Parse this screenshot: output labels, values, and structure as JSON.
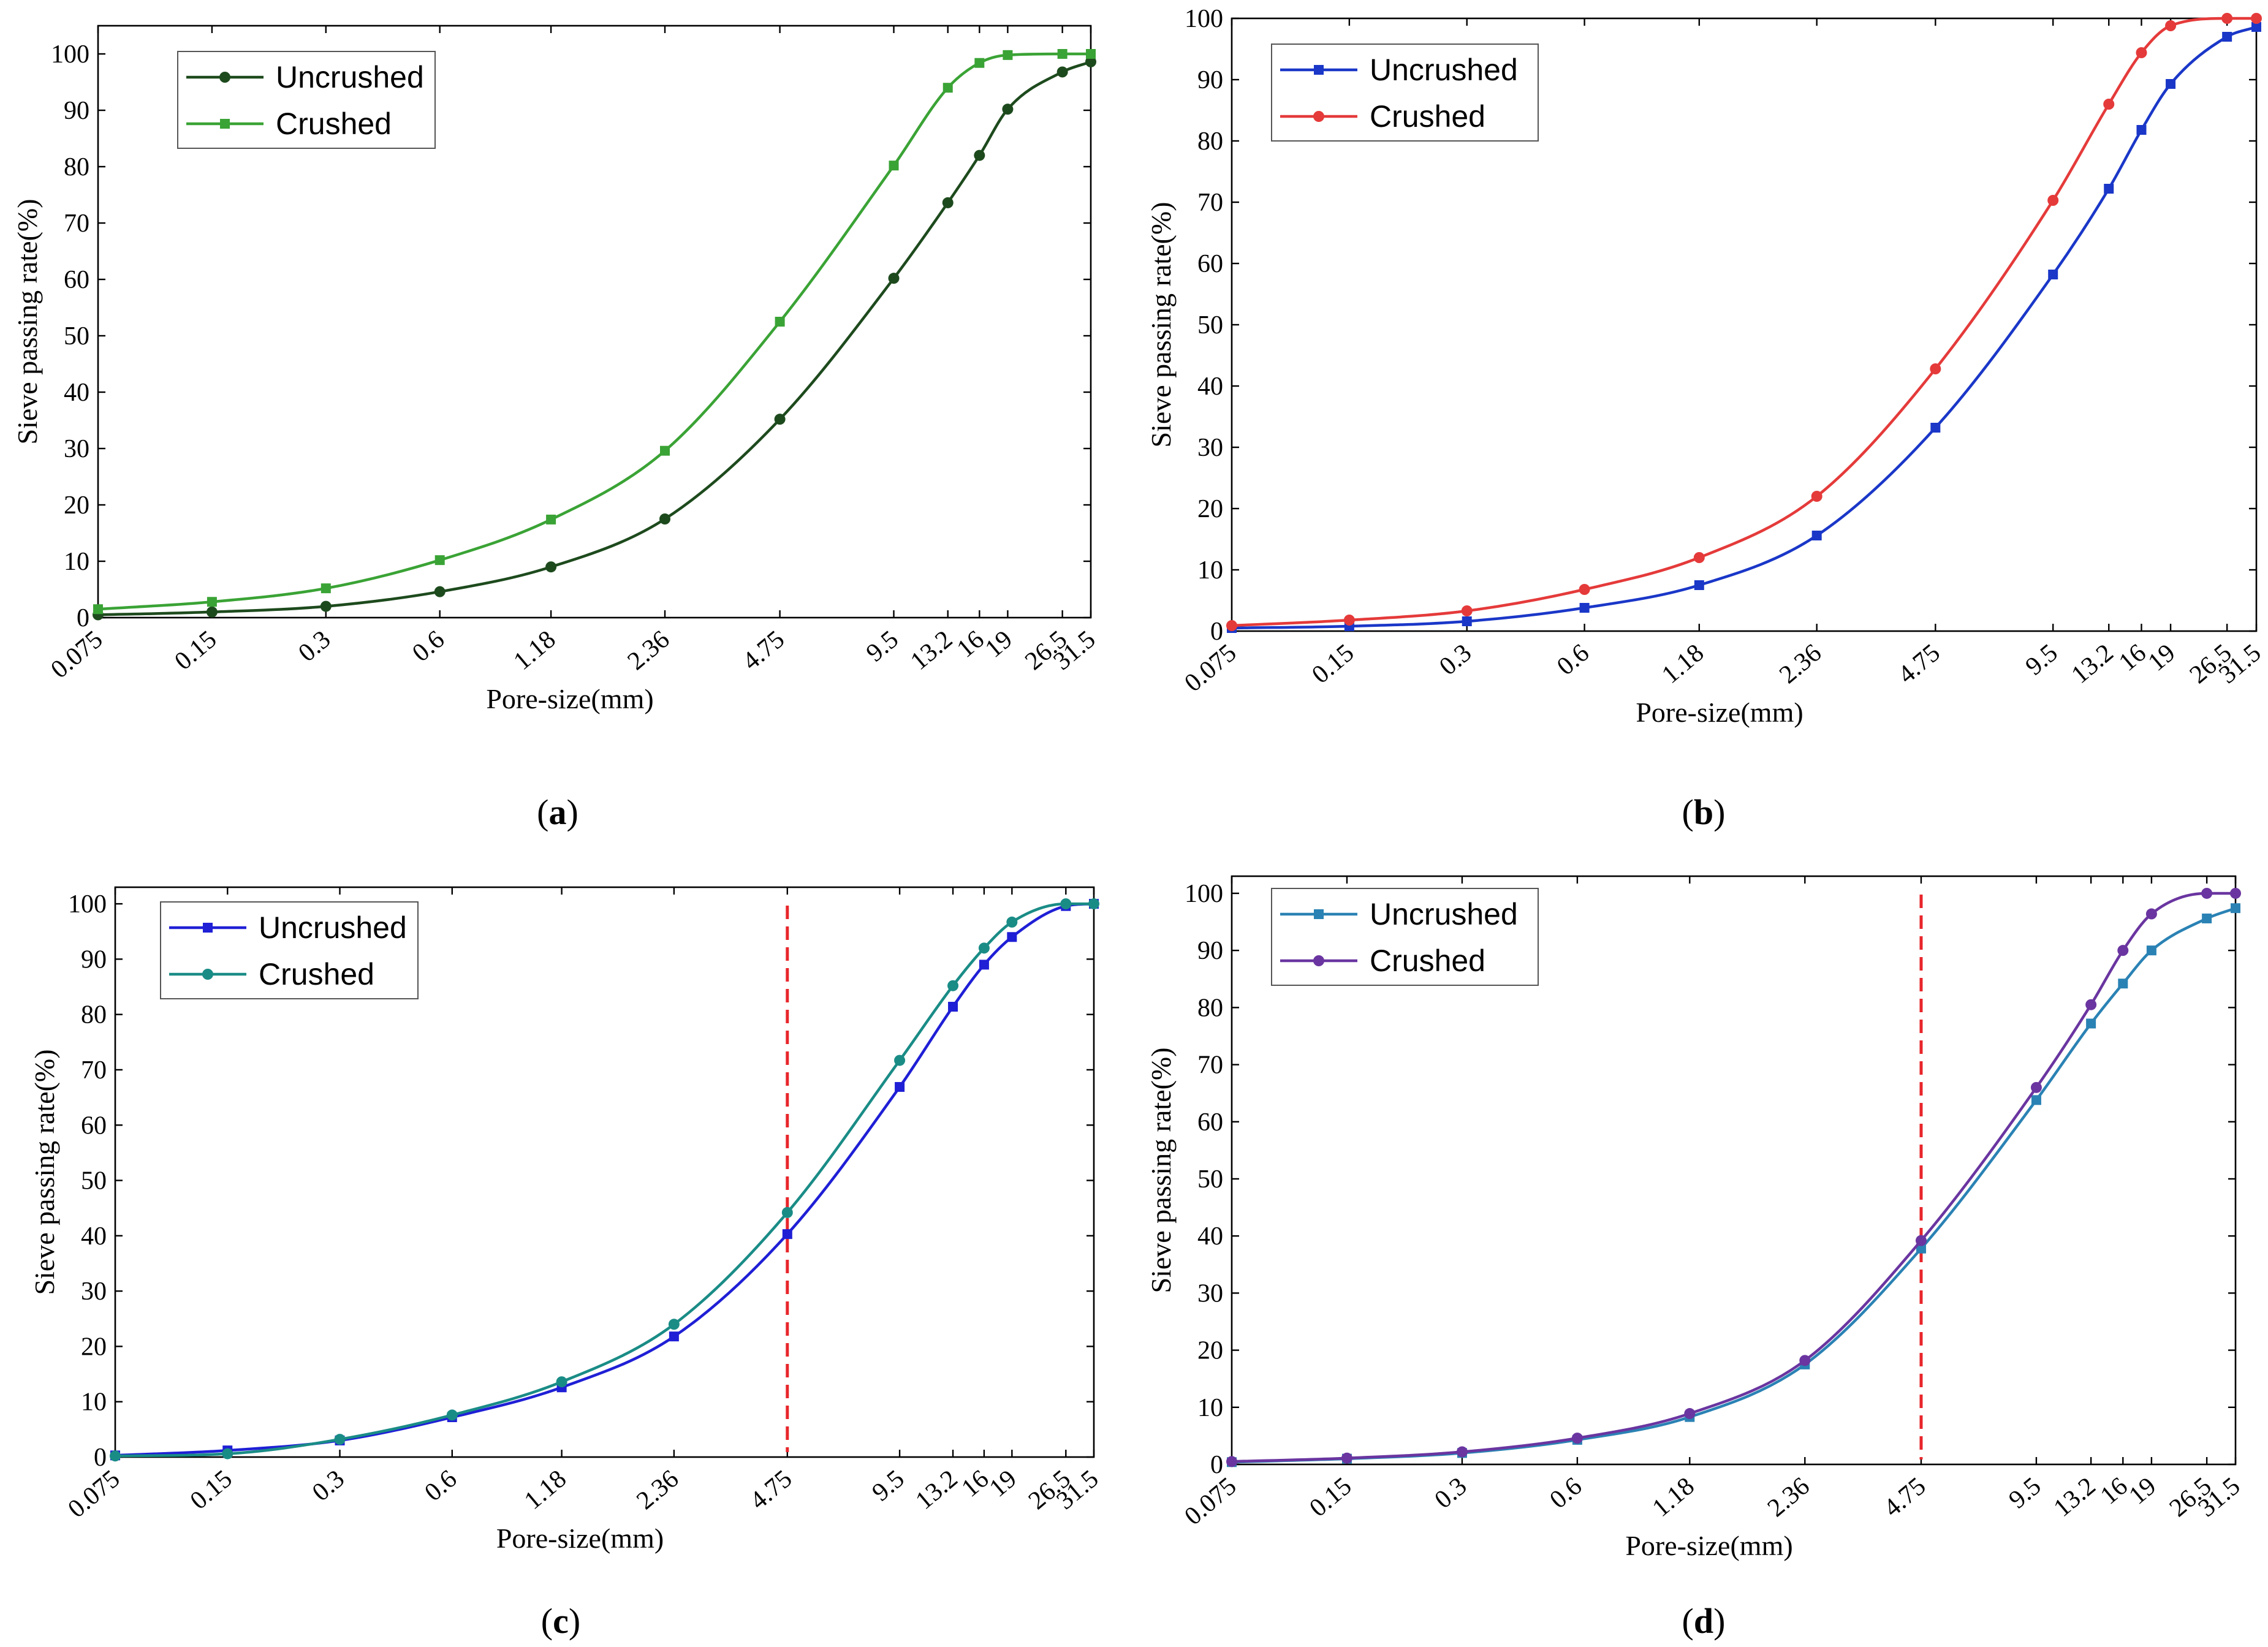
{
  "chart_data": [
    {
      "type": "line",
      "caption": "(a)",
      "caption_letter": "a",
      "xlabel": "Pore-size(mm)",
      "ylabel": "Sieve passing rate(%)",
      "x_scale": "log",
      "x_ticks": [
        "0.075",
        "0.15",
        "0.3",
        "0.6",
        "1.18",
        "2.36",
        "4.75",
        "9.5",
        "13.2",
        "16",
        "19",
        "26.5",
        "31.5"
      ],
      "xlim": [
        0.075,
        31.5
      ],
      "ylim": [
        0,
        105
      ],
      "y_ticks": [
        0,
        10,
        20,
        30,
        40,
        50,
        60,
        70,
        80,
        90,
        100
      ],
      "legend_position": "top-left",
      "series": [
        {
          "name": "Uncrushed",
          "color": "#1d4a1d",
          "marker": "circle",
          "x": [
            0.075,
            0.15,
            0.3,
            0.6,
            1.18,
            2.36,
            4.75,
            9.5,
            13.2,
            16,
            19,
            26.5,
            31.5
          ],
          "values": [
            0.5,
            1.0,
            2.0,
            4.6,
            9.0,
            17.5,
            35.2,
            60.2,
            73.6,
            82.0,
            90.2,
            96.8,
            98.6
          ]
        },
        {
          "name": "Crushed",
          "color": "#3aa335",
          "marker": "square",
          "x": [
            0.075,
            0.15,
            0.3,
            0.6,
            1.18,
            2.36,
            4.75,
            9.5,
            13.2,
            16,
            19,
            26.5,
            31.5
          ],
          "values": [
            1.5,
            2.8,
            5.2,
            10.2,
            17.4,
            29.6,
            52.5,
            80.2,
            94.0,
            98.4,
            99.8,
            100,
            100
          ]
        }
      ]
    },
    {
      "type": "line",
      "caption": "(b)",
      "caption_letter": "b",
      "xlabel": "Pore-size(mm)",
      "ylabel": "Sieve passing rate(%)",
      "x_scale": "log",
      "x_ticks": [
        "0.075",
        "0.15",
        "0.3",
        "0.6",
        "1.18",
        "2.36",
        "4.75",
        "9.5",
        "13.2",
        "16",
        "19",
        "26.5",
        "31.5"
      ],
      "xlim": [
        0.075,
        31.5
      ],
      "ylim": [
        0,
        100
      ],
      "y_ticks": [
        0,
        10,
        20,
        30,
        40,
        50,
        60,
        70,
        80,
        90,
        100
      ],
      "legend_position": "top-left",
      "series": [
        {
          "name": "Uncrushed",
          "color": "#1a37c8",
          "marker": "square",
          "x": [
            0.075,
            0.15,
            0.3,
            0.6,
            1.18,
            2.36,
            4.75,
            9.5,
            13.2,
            16,
            19,
            26.5,
            31.5
          ],
          "values": [
            0.5,
            0.8,
            1.6,
            3.8,
            7.5,
            15.6,
            33.2,
            58.2,
            72.2,
            81.8,
            89.3,
            97.0,
            98.6
          ]
        },
        {
          "name": "Crushed",
          "color": "#e53a3a",
          "marker": "circle",
          "x": [
            0.075,
            0.15,
            0.3,
            0.6,
            1.18,
            2.36,
            4.75,
            9.5,
            13.2,
            16,
            19,
            26.5,
            31.5
          ],
          "values": [
            0.9,
            1.8,
            3.3,
            6.8,
            12.0,
            22.0,
            42.8,
            70.3,
            86.0,
            94.4,
            98.8,
            100,
            100
          ]
        }
      ]
    },
    {
      "type": "line",
      "caption": "(c)",
      "caption_letter": "c",
      "xlabel": "Pore-size(mm)",
      "ylabel": "Sieve passing rate(%)",
      "x_scale": "log",
      "x_ticks": [
        "0.075",
        "0.15",
        "0.3",
        "0.6",
        "1.18",
        "2.36",
        "4.75",
        "9.5",
        "13.2",
        "16",
        "19",
        "26.5",
        "31.5"
      ],
      "xlim": [
        0.075,
        31.5
      ],
      "ylim": [
        0,
        103
      ],
      "y_ticks": [
        0,
        10,
        20,
        30,
        40,
        50,
        60,
        70,
        80,
        90,
        100
      ],
      "legend_position": "top-left",
      "reference_line": {
        "x": 4.75,
        "color": "#e8262b",
        "style": "dashed"
      },
      "series": [
        {
          "name": "Uncrushed",
          "color": "#1f1fd6",
          "marker": "square",
          "x": [
            0.075,
            0.15,
            0.3,
            0.6,
            1.18,
            2.36,
            4.75,
            9.5,
            13.2,
            16,
            19,
            26.5,
            31.5
          ],
          "values": [
            0.3,
            1.2,
            3.0,
            7.2,
            12.6,
            21.8,
            40.3,
            66.9,
            81.4,
            89.0,
            94.0,
            99.6,
            100
          ]
        },
        {
          "name": "Crushed",
          "color": "#1a8c86",
          "marker": "circle",
          "x": [
            0.075,
            0.15,
            0.3,
            0.6,
            1.18,
            2.36,
            4.75,
            9.5,
            13.2,
            16,
            19,
            26.5,
            31.5
          ],
          "values": [
            0.2,
            0.6,
            3.2,
            7.6,
            13.6,
            24.0,
            44.2,
            71.7,
            85.2,
            92.0,
            96.7,
            100,
            100
          ]
        }
      ]
    },
    {
      "type": "line",
      "caption": "(d)",
      "caption_letter": "d",
      "xlabel": "Pore-size(mm)",
      "ylabel": "Sieve passing rate(%)",
      "x_scale": "log",
      "x_ticks": [
        "0.075",
        "0.15",
        "0.3",
        "0.6",
        "1.18",
        "2.36",
        "4.75",
        "9.5",
        "13.2",
        "16",
        "19",
        "26.5",
        "31.5"
      ],
      "xlim": [
        0.075,
        31.5
      ],
      "ylim": [
        0,
        103
      ],
      "y_ticks": [
        0,
        10,
        20,
        30,
        40,
        50,
        60,
        70,
        80,
        90,
        100
      ],
      "legend_position": "top-left",
      "reference_line": {
        "x": 4.75,
        "color": "#e8262b",
        "style": "dashed"
      },
      "series": [
        {
          "name": "Uncrushed",
          "color": "#2a82b4",
          "marker": "square",
          "x": [
            0.075,
            0.15,
            0.3,
            0.6,
            1.18,
            2.36,
            4.75,
            9.5,
            13.2,
            16,
            19,
            26.5,
            31.5
          ],
          "values": [
            0.4,
            1.0,
            2.0,
            4.3,
            8.3,
            17.5,
            37.8,
            63.8,
            77.2,
            84.2,
            90.0,
            95.6,
            97.4
          ]
        },
        {
          "name": "Crushed",
          "color": "#6a35a0",
          "marker": "circle",
          "x": [
            0.075,
            0.15,
            0.3,
            0.6,
            1.18,
            2.36,
            4.75,
            9.5,
            13.2,
            16,
            19,
            26.5,
            31.5
          ],
          "values": [
            0.5,
            1.1,
            2.2,
            4.6,
            8.9,
            18.2,
            39.2,
            66.0,
            80.5,
            90.0,
            96.4,
            100,
            100
          ]
        }
      ]
    }
  ]
}
